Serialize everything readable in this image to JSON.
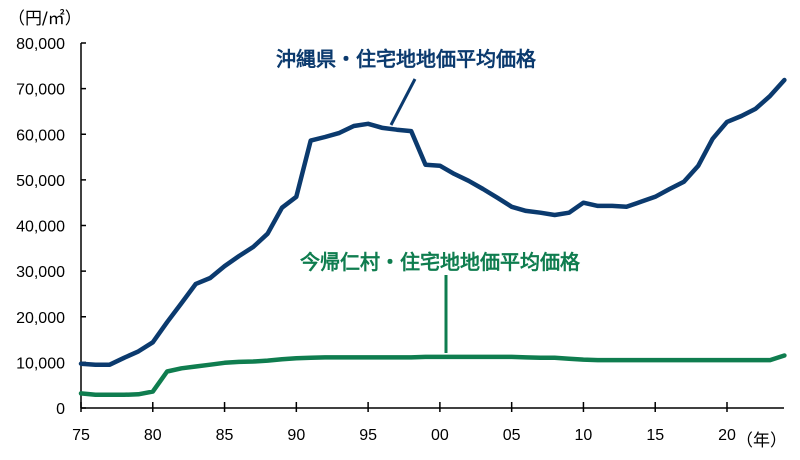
{
  "chart_data": {
    "type": "line",
    "title": "",
    "xlabel": "（年）",
    "ylabel": "（円/㎡）",
    "ylim": [
      0,
      80000
    ],
    "xlim": [
      1975,
      2024
    ],
    "grid": false,
    "legend_position": "inline annotations",
    "x_ticks": [
      "75",
      "80",
      "85",
      "90",
      "95",
      "00",
      "05",
      "10",
      "15",
      "20"
    ],
    "y_ticks": [
      "0",
      "10,000",
      "20,000",
      "30,000",
      "40,000",
      "50,000",
      "60,000",
      "70,000",
      "80,000"
    ],
    "x": [
      1975,
      1976,
      1977,
      1978,
      1979,
      1980,
      1981,
      1982,
      1983,
      1984,
      1985,
      1986,
      1987,
      1988,
      1989,
      1990,
      1991,
      1992,
      1993,
      1994,
      1995,
      1996,
      1997,
      1998,
      1999,
      2000,
      2001,
      2002,
      2003,
      2004,
      2005,
      2006,
      2007,
      2008,
      2009,
      2010,
      2011,
      2012,
      2013,
      2014,
      2015,
      2016,
      2017,
      2018,
      2019,
      2020,
      2021,
      2022,
      2023,
      2024
    ],
    "series": [
      {
        "name": "沖縄県・住宅地地価平均価格",
        "color": "#0b3a6e",
        "values": [
          9700,
          9500,
          9500,
          11000,
          12400,
          14400,
          18800,
          23000,
          27200,
          28500,
          31100,
          33300,
          35300,
          38200,
          43900,
          46300,
          58600,
          59400,
          60300,
          61800,
          62300,
          61400,
          61000,
          60700,
          53300,
          53100,
          51300,
          49800,
          48000,
          46100,
          44100,
          43200,
          42800,
          42300,
          42800,
          45000,
          44300,
          44300,
          44100,
          45200,
          46300,
          48000,
          49600,
          53100,
          59000,
          62700,
          64000,
          65600,
          68400,
          71900
        ]
      },
      {
        "name": "今帰仁村・住宅地地価平均価格",
        "color": "#0f7d4f",
        "values": [
          3200,
          2900,
          2900,
          2900,
          3000,
          3600,
          8000,
          8700,
          9100,
          9500,
          9900,
          10100,
          10200,
          10400,
          10700,
          10900,
          11000,
          11100,
          11100,
          11100,
          11100,
          11100,
          11100,
          11100,
          11200,
          11200,
          11200,
          11200,
          11200,
          11200,
          11200,
          11100,
          11000,
          11000,
          10800,
          10600,
          10500,
          10500,
          10500,
          10500,
          10500,
          10500,
          10500,
          10500,
          10500,
          10500,
          10500,
          10500,
          10500,
          11500
        ]
      }
    ]
  },
  "labels": {
    "y_unit": "（円/㎡）",
    "x_unit": "（年）",
    "okinawa": "沖縄県・住宅地地価平均価格",
    "nakijin": "今帰仁村・住宅地地価平均価格"
  }
}
